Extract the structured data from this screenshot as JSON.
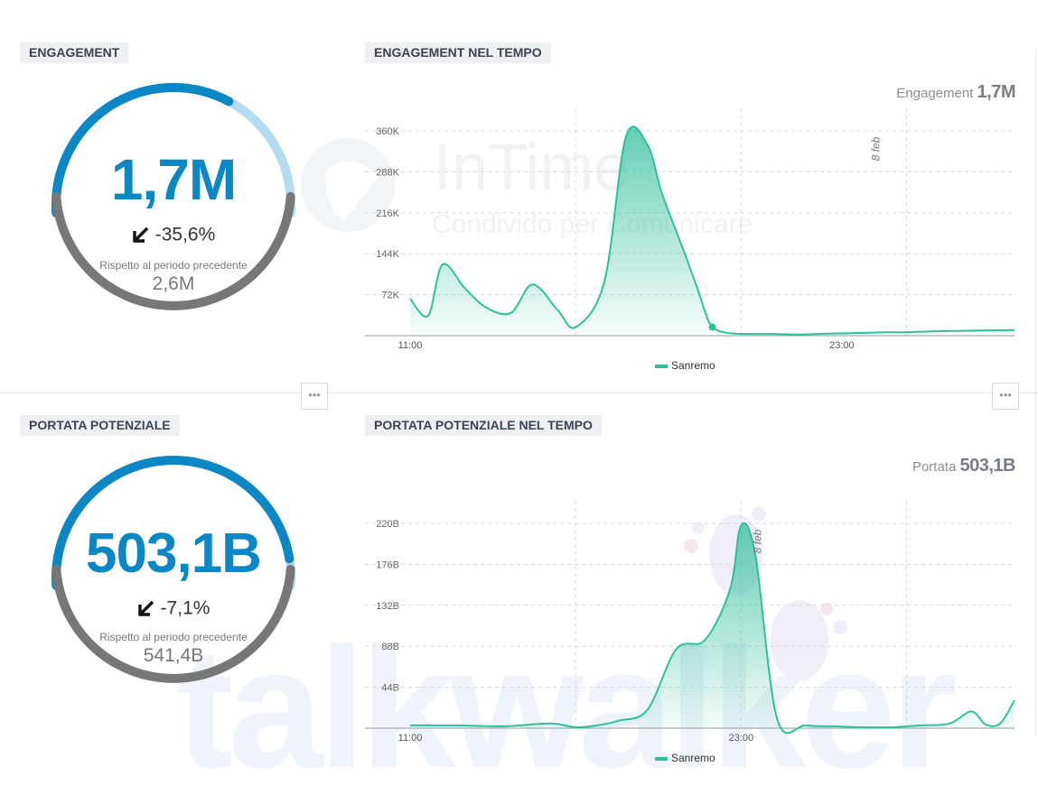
{
  "watermarks": {
    "brand_bottom": "talkwalker",
    "brand_top": "InTime",
    "brand_top_sub": "Condivido per Comunicare"
  },
  "engagement": {
    "title": "ENGAGEMENT",
    "value": "1,7M",
    "change": "-35,6%",
    "caption": "Rispetto al periodo precedente",
    "previous": "2,6M",
    "arrow_icon": "arrow-down-left-icon",
    "gauge_fraction": 0.65
  },
  "engagement_chart": {
    "title": "ENGAGEMENT NEL TEMPO",
    "total_label": "Engagement",
    "total_value": "1,7M"
  },
  "reach": {
    "title": "PORTATA POTENZIALE",
    "value": "503,1B",
    "change": "-7,1%",
    "caption": "Rispetto al periodo precedente",
    "previous": "541,4B",
    "arrow_icon": "arrow-down-left-icon",
    "gauge_fraction": 0.93
  },
  "reach_chart": {
    "title": "PORTATA POTENZIALE NEL TEMPO",
    "total_label": "Portata",
    "total_value": "503,1B"
  },
  "colors": {
    "accent": "#0a87c4",
    "gauge_remaining": "#b3dcf0",
    "gauge_previous": "#777777",
    "series": "#2fbf9a"
  },
  "more_icon": "more-dots-icon",
  "chart_data": [
    {
      "type": "area",
      "ylim": [
        0,
        360000
      ],
      "yticks": [
        72000,
        144000,
        216000,
        288000,
        360000
      ],
      "ytick_labels": [
        "72K",
        "144K",
        "216K",
        "288K",
        "360K"
      ],
      "xlim": [
        0,
        16.8
      ],
      "xtick_values": [
        0,
        12
      ],
      "xtick_labels": [
        "11:00",
        "23:00"
      ],
      "day_marker": {
        "x": 13,
        "label": "8 feb"
      },
      "grid_x": [
        4.6,
        9.2,
        13.8
      ],
      "legend_position": "bottom",
      "series": [
        {
          "name": "Sanremo",
          "x": [
            0,
            0.5,
            0.9,
            1.5,
            2.1,
            2.8,
            3.4,
            4.1,
            4.6,
            5.4,
            6.0,
            6.6,
            7.0,
            7.6,
            8.0,
            8.2,
            8.4,
            8.8,
            9.4,
            10.1,
            10.7,
            11.3,
            11.9,
            12.7,
            13.2,
            13.7,
            14.2,
            14.8,
            16.8
          ],
          "y": [
            65000,
            35000,
            125000,
            85000,
            50000,
            40000,
            90000,
            45000,
            15000,
            95000,
            350000,
            335000,
            250000,
            150000,
            80000,
            42000,
            15000,
            5000,
            3000,
            3000,
            2000,
            3000,
            4000,
            5000,
            6000,
            6000,
            7000,
            8000,
            10000
          ]
        }
      ]
    },
    {
      "type": "area",
      "ylim": [
        0,
        220000000000
      ],
      "yticks": [
        44000000000,
        88000000000,
        132000000000,
        176000000000,
        220000000000
      ],
      "ytick_labels": [
        "44B",
        "88B",
        "132B",
        "176B",
        "220B"
      ],
      "xlim": [
        0,
        16.8
      ],
      "xtick_values": [
        0,
        9.2
      ],
      "xtick_labels": [
        "11:00",
        "23:00"
      ],
      "day_marker": {
        "x": 9.7,
        "label": "8 feb"
      },
      "grid_x": [
        4.6,
        9.2,
        13.8
      ],
      "legend_position": "bottom",
      "series": [
        {
          "name": "Sanremo",
          "x": [
            0,
            1.3,
            2.6,
            3.9,
            4.6,
            5.2,
            5.8,
            6.6,
            7.4,
            8.2,
            8.9,
            9.2,
            9.6,
            10.2,
            11.0,
            11.8,
            12.6,
            13.4,
            14.2,
            15.0,
            15.6,
            16.0,
            16.4,
            16.8
          ],
          "y": [
            3000000000,
            3000000000,
            2000000000,
            5000000000,
            1000000000,
            3000000000,
            8000000000,
            20000000000,
            85000000000,
            95000000000,
            150000000000,
            218000000000,
            185000000000,
            10000000000,
            3000000000,
            2000000000,
            1000000000,
            1000000000,
            3000000000,
            5000000000,
            18000000000,
            4000000000,
            5000000000,
            30000000000
          ]
        }
      ]
    }
  ]
}
